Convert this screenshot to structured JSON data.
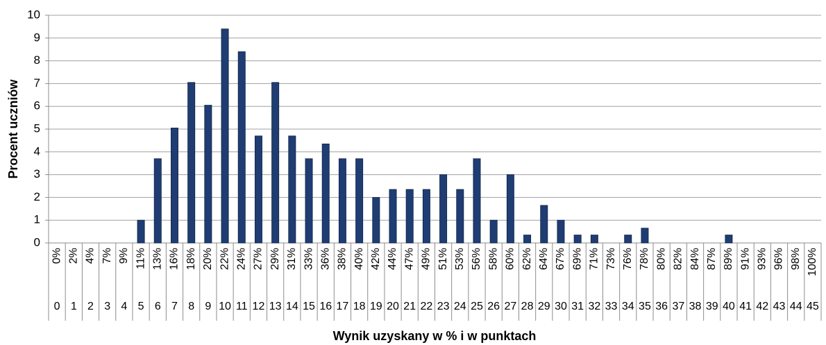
{
  "chart_data": {
    "type": "bar",
    "x_label": "Wynik uzyskany w % i w punktach",
    "y_label": "Procent uczniów",
    "categories": [
      "0%",
      "2%",
      "4%",
      "7%",
      "9%",
      "11%",
      "13%",
      "16%",
      "18%",
      "20%",
      "22%",
      "24%",
      "27%",
      "29%",
      "31%",
      "33%",
      "36%",
      "38%",
      "40%",
      "42%",
      "44%",
      "47%",
      "49%",
      "51%",
      "53%",
      "56%",
      "58%",
      "60%",
      "62%",
      "64%",
      "67%",
      "69%",
      "71%",
      "73%",
      "76%",
      "78%",
      "80%",
      "82%",
      "84%",
      "87%",
      "89%",
      "91%",
      "93%",
      "96%",
      "98%",
      "100%"
    ],
    "points": [
      0,
      1,
      2,
      3,
      4,
      5,
      6,
      7,
      8,
      9,
      10,
      11,
      12,
      13,
      14,
      15,
      16,
      17,
      18,
      19,
      20,
      21,
      22,
      23,
      24,
      25,
      26,
      27,
      28,
      29,
      30,
      31,
      32,
      33,
      34,
      35,
      36,
      37,
      38,
      39,
      40,
      41,
      42,
      43,
      44,
      45
    ],
    "values": [
      0,
      0,
      0,
      0,
      0,
      1.0,
      3.7,
      5.05,
      7.05,
      6.05,
      9.4,
      8.4,
      4.7,
      7.05,
      4.7,
      3.7,
      4.35,
      3.7,
      3.7,
      2.0,
      2.35,
      2.35,
      2.35,
      3.0,
      2.35,
      3.7,
      1.0,
      3.0,
      0.35,
      1.65,
      1.0,
      0.35,
      0.35,
      0,
      0.35,
      0.65,
      0,
      0,
      0,
      0,
      0.35,
      0,
      0,
      0,
      0,
      0
    ],
    "color": "#1f3d73",
    "ylim": [
      0,
      10
    ],
    "yticks": [
      0,
      1,
      2,
      3,
      4,
      5,
      6,
      7,
      8,
      9,
      10
    ],
    "grid": true
  }
}
